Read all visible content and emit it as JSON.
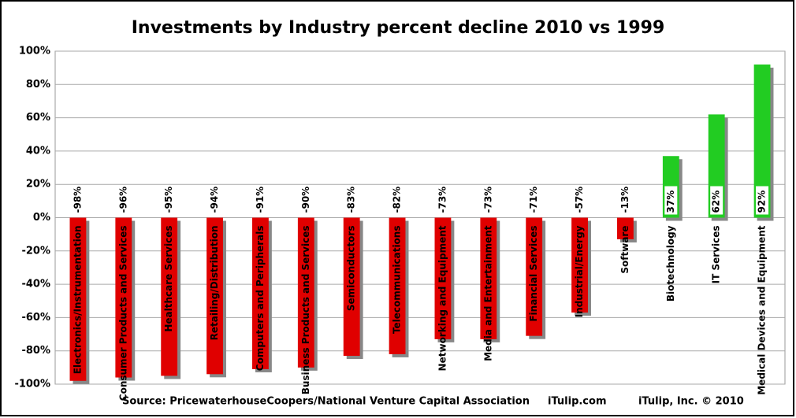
{
  "chart_data": {
    "type": "bar",
    "title": "Investments by Industry percent decline 2010 vs 1999",
    "categories": [
      "Electronics/Instrumentation",
      "Consumer Products and Services",
      "Healthcare Services",
      "Retailing/Distribution",
      "Computers and Peripherals",
      "Business Products and Services",
      "Semiconductors",
      "Telecommunications",
      "Networking and Equipment",
      "Media and Entertainment",
      "Financial Services",
      "Industrial/Energy",
      "Software",
      "Biotechnology",
      "IT Services",
      "Medical Devices and Equipment"
    ],
    "values": [
      -98,
      -96,
      -95,
      -94,
      -91,
      -90,
      -83,
      -82,
      -73,
      -73,
      -71,
      -57,
      -13,
      37,
      62,
      92
    ],
    "value_labels": [
      "-98%",
      "-96%",
      "-95%",
      "-94%",
      "-91%",
      "-90%",
      "-83%",
      "-82%",
      "-73%",
      "-73%",
      "-71%",
      "-57%",
      "-13%",
      "37%",
      "62%",
      "92%"
    ],
    "colors": [
      "#e00000",
      "#e00000",
      "#e00000",
      "#e00000",
      "#e00000",
      "#e00000",
      "#e00000",
      "#e00000",
      "#e00000",
      "#e00000",
      "#e00000",
      "#e00000",
      "#e00000",
      "#22cc22",
      "#22cc22",
      "#22cc22"
    ],
    "ylim": [
      -100,
      100
    ],
    "yticks": [
      {
        "value": -100,
        "label": "-100%"
      },
      {
        "value": -80,
        "label": "-80%"
      },
      {
        "value": -60,
        "label": "-60%"
      },
      {
        "value": -40,
        "label": "-40%"
      },
      {
        "value": -20,
        "label": "-20%"
      },
      {
        "value": 0,
        "label": "0%"
      },
      {
        "value": 20,
        "label": "20%"
      },
      {
        "value": 40,
        "label": "40%"
      },
      {
        "value": 60,
        "label": "60%"
      },
      {
        "value": 80,
        "label": "80%"
      },
      {
        "value": 100,
        "label": "100%"
      }
    ],
    "grid": true,
    "source": "Source: PricewaterhouseCoopers/National Venture Capital Association",
    "site": "iTulip.com",
    "copyright": "iTulip, Inc. © 2010"
  }
}
